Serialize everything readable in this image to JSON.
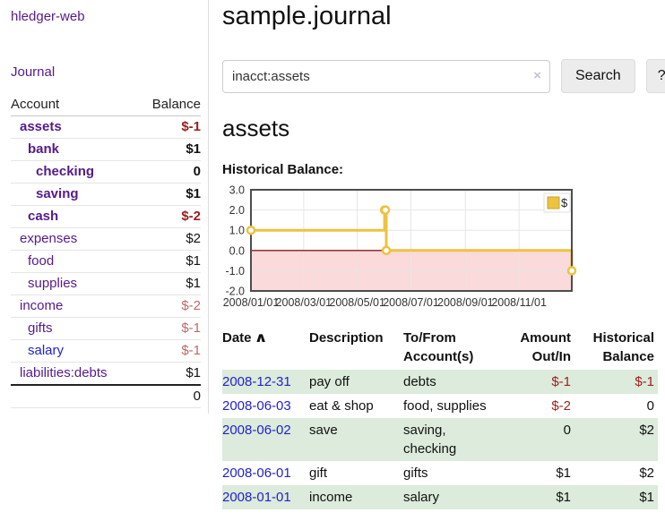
{
  "app": {
    "title": "hledger-web"
  },
  "sidebar": {
    "journal_link": "Journal",
    "accounts_table": {
      "headers": [
        "Account",
        "Balance"
      ],
      "rows": [
        {
          "name": "assets",
          "balance": "$-1",
          "depth": 1,
          "bold": true
        },
        {
          "name": "bank",
          "balance": "$1",
          "depth": 2,
          "bold": true
        },
        {
          "name": "checking",
          "balance": "0",
          "depth": 3,
          "bold": true
        },
        {
          "name": "saving",
          "balance": "$1",
          "depth": 3,
          "bold": true
        },
        {
          "name": "cash",
          "balance": "$-2",
          "depth": 2,
          "bold": true
        },
        {
          "name": "expenses",
          "balance": "$2",
          "depth": 1,
          "bold": false
        },
        {
          "name": "food",
          "balance": "$1",
          "depth": 2,
          "bold": false
        },
        {
          "name": "supplies",
          "balance": "$1",
          "depth": 2,
          "bold": false
        },
        {
          "name": "income",
          "balance": "$-2",
          "depth": 1,
          "bold": false
        },
        {
          "name": "gifts",
          "balance": "$-1",
          "depth": 2,
          "bold": false
        },
        {
          "name": "salary",
          "balance": "$-1",
          "depth": 2,
          "bold": false,
          "blue_link": true
        },
        {
          "name": "liabilities:debts",
          "balance": "$1",
          "depth": 1,
          "bold": false
        }
      ],
      "total": "0"
    }
  },
  "main": {
    "title": "sample.journal",
    "search": {
      "value": "inacct:assets",
      "clear_icon": "×",
      "button_label": "Search",
      "help_label": "?"
    },
    "account_heading": "assets",
    "chart_label": "Historical Balance:"
  },
  "chart_data": {
    "type": "line",
    "step": true,
    "title": "Historical Balance",
    "series": [
      {
        "name": "$",
        "color": "#edc240",
        "points": [
          [
            "2008-01-01",
            1
          ],
          [
            "2008-06-01",
            2
          ],
          [
            "2008-06-02",
            2
          ],
          [
            "2008-06-03",
            0
          ],
          [
            "2008-12-31",
            -1
          ]
        ]
      }
    ],
    "x_range": [
      "2008-01-01",
      "2008-12-31"
    ],
    "ylim": [
      -2,
      3
    ],
    "y_ticks": [
      3,
      2,
      1,
      0,
      -1,
      -2
    ],
    "y_tick_labels": [
      "3.0",
      "2.0",
      "1.0",
      "0.0",
      "-1.0",
      "-2.0"
    ],
    "x_ticks": [
      {
        "date": "2008-01-01",
        "label": "2008/01/01"
      },
      {
        "date": "2008-03-01",
        "label": "2008/03/01"
      },
      {
        "date": "2008-05-01",
        "label": "2008/05/01"
      },
      {
        "date": "2008-07-01",
        "label": "2008/07/01"
      },
      {
        "date": "2008-09-01",
        "label": "2008/09/01"
      },
      {
        "date": "2008-11-01",
        "label": "2008/11/01"
      }
    ],
    "legend": {
      "label": "$",
      "position": "top-right"
    },
    "grid": true,
    "negative_region_fill": "#fadada",
    "zero_line_color": "#8b1a1a",
    "frame_color": "#4d4d4d"
  },
  "register_table": {
    "sort_icon": "∧",
    "headers": [
      "Date",
      "Description",
      "To/From Account(s)",
      "Amount Out/In",
      "Historical Balance"
    ],
    "rows": [
      {
        "date": "2008-12-31",
        "description": "pay off",
        "accounts": "debts",
        "amount": "$-1",
        "balance": "$-1"
      },
      {
        "date": "2008-06-03",
        "description": "eat & shop",
        "accounts": "food, supplies",
        "amount": "$-2",
        "balance": "0"
      },
      {
        "date": "2008-06-02",
        "description": "save",
        "accounts": "saving, checking",
        "amount": "0",
        "balance": "$2"
      },
      {
        "date": "2008-06-01",
        "description": "gift",
        "accounts": "gifts",
        "amount": "$1",
        "balance": "$2"
      },
      {
        "date": "2008-01-01",
        "description": "income",
        "accounts": "salary",
        "amount": "$1",
        "balance": "$1"
      }
    ]
  },
  "colors": {
    "link_purple": "#551a8b",
    "link_blue": "#2222cc",
    "negative_dark": "#9b1c1c",
    "negative_rose": "#bb6a6a",
    "row_green": "#dcebdb",
    "series_gold": "#edc240"
  }
}
